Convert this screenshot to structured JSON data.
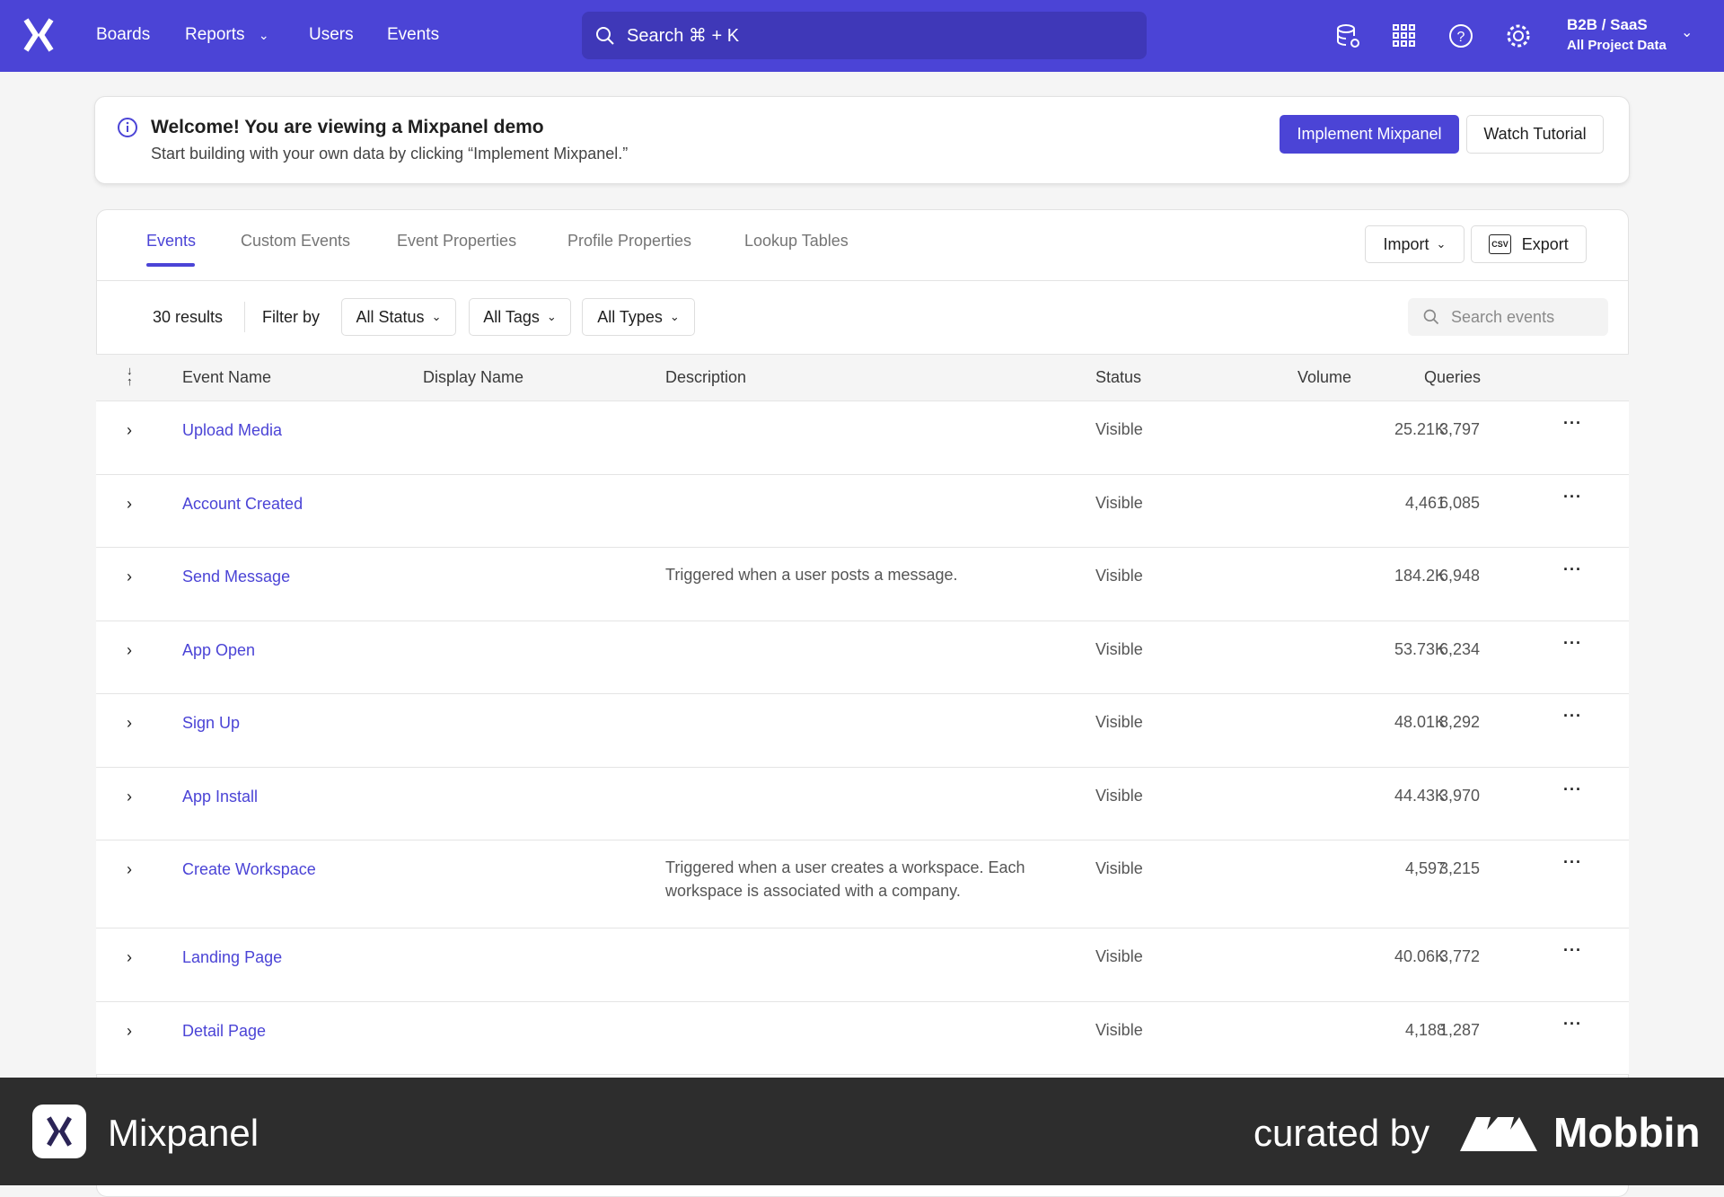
{
  "nav": {
    "items": [
      "Boards",
      "Reports",
      "Users",
      "Events"
    ],
    "search": "Search  ⌘ + K",
    "project": "B2B / SaaS",
    "project_sub": "All Project Data"
  },
  "banner": {
    "title": "Welcome! You are viewing a Mixpanel demo",
    "subtitle": "Start building with your own data by clicking “Implement Mixpanel.”",
    "primary": "Implement Mixpanel",
    "secondary": "Watch Tutorial"
  },
  "tabs": [
    "Events",
    "Custom Events",
    "Event Properties",
    "Profile Properties",
    "Lookup Tables"
  ],
  "actions": {
    "import": "Import",
    "export": "Export",
    "csv": "CSV"
  },
  "filters": {
    "results": "30 results",
    "filter_by": "Filter by",
    "status": "All Status",
    "tags": "All Tags",
    "types": "All Types",
    "search_placeholder": "Search events"
  },
  "columns": {
    "event_name": "Event Name",
    "display_name": "Display Name",
    "description": "Description",
    "status": "Status",
    "volume": "Volume",
    "queries": "Queries"
  },
  "rows": [
    {
      "name": "Upload Media",
      "description": "",
      "status": "Visible",
      "volume": "25.21K",
      "queries": "3,797"
    },
    {
      "name": "Account Created",
      "description": "",
      "status": "Visible",
      "volume": "4,461",
      "queries": "6,085"
    },
    {
      "name": "Send Message",
      "description": "Triggered when a user posts a message.",
      "status": "Visible",
      "volume": "184.2K",
      "queries": "6,948"
    },
    {
      "name": "App Open",
      "description": "",
      "status": "Visible",
      "volume": "53.73K",
      "queries": "6,234"
    },
    {
      "name": "Sign Up",
      "description": "",
      "status": "Visible",
      "volume": "48.01K",
      "queries": "8,292"
    },
    {
      "name": "App Install",
      "description": "",
      "status": "Visible",
      "volume": "44.43K",
      "queries": "3,970"
    },
    {
      "name": "Create Workspace",
      "description": "Triggered when a user creates a workspace. Each workspace is associated with a company.",
      "status": "Visible",
      "volume": "4,597",
      "queries": "3,215"
    },
    {
      "name": "Landing Page",
      "description": "",
      "status": "Visible",
      "volume": "40.06K",
      "queries": "3,772"
    },
    {
      "name": "Detail Page",
      "description": "",
      "status": "Visible",
      "volume": "4,188",
      "queries": "1,287"
    }
  ],
  "footer": {
    "app": "Mixpanel",
    "curated": "curated by",
    "brand": "Mobbin"
  },
  "colors": {
    "brand": "#4b44d6",
    "footer": "#2d2d2d"
  }
}
